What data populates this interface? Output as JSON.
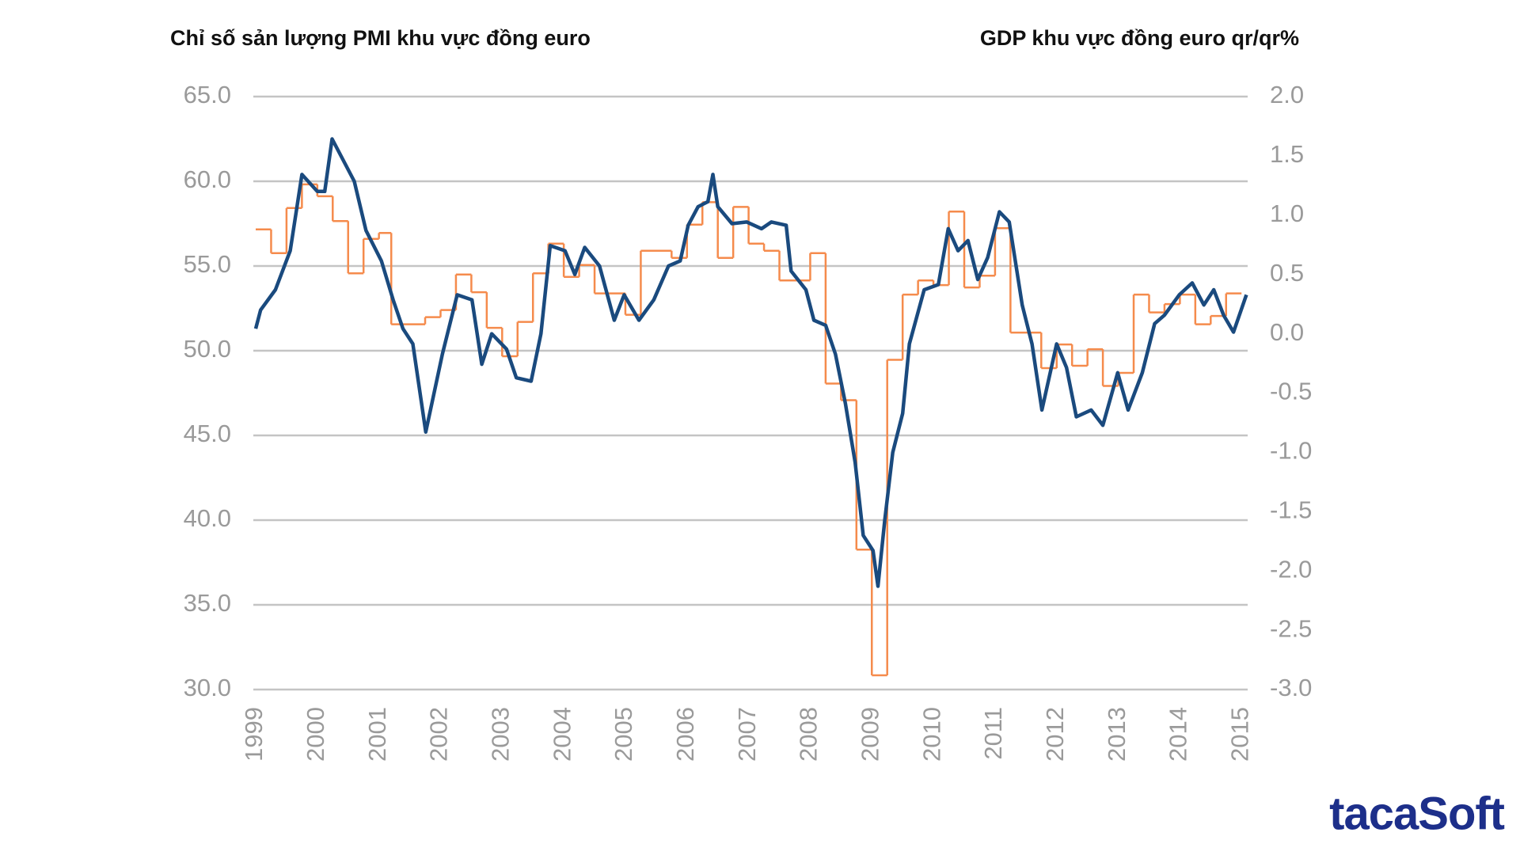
{
  "chart_data": {
    "type": "line",
    "y_label": "Chỉ số sản lượng PMI khu vực đồng euro",
    "y2_label": "GDP khu vực đồng euro qr/qr%",
    "xlim": [
      1999,
      2015.1
    ],
    "xticks": [
      1999,
      2000,
      2001,
      2002,
      2003,
      2004,
      2005,
      2006,
      2007,
      2008,
      2009,
      2010,
      2011,
      2012,
      2013,
      2014,
      2015
    ],
    "ylim": [
      30,
      65
    ],
    "yticks": [
      {
        "value": 30,
        "label": "30.0"
      },
      {
        "value": 35,
        "label": "35.0"
      },
      {
        "value": 40,
        "label": "40.0"
      },
      {
        "value": 45,
        "label": "45.0"
      },
      {
        "value": 50,
        "label": "50.0"
      },
      {
        "value": 55,
        "label": "55.0"
      },
      {
        "value": 60,
        "label": "60.0"
      },
      {
        "value": 65,
        "label": "65.0"
      }
    ],
    "y2lim": [
      -3,
      2
    ],
    "y2ticks": [
      {
        "value": -3,
        "label": "-3.0"
      },
      {
        "value": -2.5,
        "label": "-2.5"
      },
      {
        "value": -2,
        "label": "-2.0"
      },
      {
        "value": -1.5,
        "label": "-1.5"
      },
      {
        "value": -1,
        "label": "-1.0"
      },
      {
        "value": -0.5,
        "label": "-0.5"
      },
      {
        "value": 0,
        "label": "0.0"
      },
      {
        "value": 0.5,
        "label": "0.5"
      },
      {
        "value": 1,
        "label": "1.0"
      },
      {
        "value": 1.5,
        "label": "1.5"
      },
      {
        "value": 2,
        "label": "2.0"
      }
    ],
    "grid": true,
    "series": [
      {
        "color": "#1a4a7e",
        "axis": "y",
        "x": [
          1999.0,
          1999.08,
          1999.32,
          1999.56,
          1999.75,
          2000.0,
          2000.12,
          2000.24,
          2000.6,
          2000.79,
          2001.04,
          2001.23,
          2001.39,
          2001.55,
          2001.76,
          2002.03,
          2002.27,
          2002.51,
          2002.67,
          2002.83,
          2003.07,
          2003.23,
          2003.47,
          2003.63,
          2003.78,
          2004.02,
          2004.18,
          2004.34,
          2004.58,
          2004.82,
          2004.98,
          2005.22,
          2005.46,
          2005.7,
          2005.89,
          2006.02,
          2006.18,
          2006.34,
          2006.42,
          2006.5,
          2006.73,
          2006.97,
          2007.21,
          2007.37,
          2007.61,
          2007.69,
          2007.93,
          2008.06,
          2008.25,
          2008.41,
          2008.57,
          2008.73,
          2008.86,
          2009.02,
          2009.1,
          2009.21,
          2009.34,
          2009.5,
          2009.61,
          2009.85,
          2010.08,
          2010.24,
          2010.4,
          2010.56,
          2010.72,
          2010.88,
          2011.07,
          2011.23,
          2011.44,
          2011.6,
          2011.76,
          2012.0,
          2012.16,
          2012.32,
          2012.56,
          2012.75,
          2012.99,
          2013.16,
          2013.39,
          2013.59,
          2013.75,
          2013.99,
          2014.2,
          2014.39,
          2014.55,
          2014.71,
          2014.87,
          2015.08
        ],
        "values": [
          51.3,
          52.4,
          53.6,
          55.9,
          60.4,
          59.4,
          59.4,
          62.5,
          60.0,
          57.1,
          55.3,
          53.0,
          51.3,
          50.4,
          45.2,
          49.8,
          53.3,
          53.0,
          49.2,
          51.0,
          50.1,
          48.4,
          48.2,
          51.0,
          56.2,
          55.9,
          54.5,
          56.1,
          55.0,
          51.8,
          53.3,
          51.8,
          53.0,
          55.0,
          55.3,
          57.4,
          58.5,
          58.8,
          60.4,
          58.5,
          57.5,
          57.6,
          57.2,
          57.6,
          57.4,
          54.7,
          53.6,
          51.8,
          51.5,
          49.8,
          46.9,
          43.4,
          39.1,
          38.2,
          36.1,
          40.0,
          44.0,
          46.3,
          50.4,
          53.6,
          53.9,
          57.2,
          55.9,
          56.5,
          54.2,
          55.5,
          58.2,
          57.6,
          52.7,
          50.4,
          46.5,
          50.4,
          49.0,
          46.1,
          46.5,
          45.6,
          48.7,
          46.5,
          48.7,
          51.6,
          52.1,
          53.3,
          54.0,
          52.7,
          53.6,
          52.1,
          51.1,
          53.3
        ]
      },
      {
        "color": "#f58b4c",
        "axis": "y2",
        "step": true,
        "x": [
          1999.0,
          1999.25,
          1999.5,
          1999.75,
          2000.0,
          2000.25,
          2000.5,
          2000.75,
          2001.0,
          2001.2,
          2001.75,
          2002.0,
          2002.25,
          2002.5,
          2002.75,
          2003.0,
          2003.25,
          2003.5,
          2003.75,
          2004.0,
          2004.25,
          2004.5,
          2005.0,
          2005.25,
          2005.75,
          2006.0,
          2006.25,
          2006.5,
          2006.75,
          2007.0,
          2007.25,
          2007.5,
          2008.0,
          2008.25,
          2008.5,
          2008.75,
          2009.0,
          2009.25,
          2009.5,
          2009.75,
          2010.0,
          2010.25,
          2010.5,
          2010.75,
          2011.0,
          2011.25,
          2011.75,
          2012.0,
          2012.25,
          2012.5,
          2012.75,
          2013.0,
          2013.25,
          2013.5,
          2013.75,
          2014.0,
          2014.25,
          2014.5,
          2014.75
        ],
        "values": [
          0.88,
          0.68,
          1.06,
          1.26,
          1.16,
          0.95,
          0.51,
          0.8,
          0.85,
          0.08,
          0.14,
          0.2,
          0.5,
          0.35,
          0.05,
          -0.19,
          0.1,
          0.51,
          0.76,
          0.48,
          0.58,
          0.34,
          0.16,
          0.7,
          0.64,
          0.92,
          1.11,
          0.64,
          1.07,
          0.76,
          0.7,
          0.45,
          0.68,
          -0.42,
          -0.56,
          -1.82,
          -2.88,
          -0.22,
          0.33,
          0.45,
          0.41,
          1.03,
          0.39,
          0.49,
          0.89,
          0.01,
          -0.29,
          -0.09,
          -0.27,
          -0.13,
          -0.44,
          -0.33,
          0.33,
          0.18,
          0.25,
          0.33,
          0.08,
          0.15,
          0.34
        ]
      }
    ],
    "logo": "tacaSoft"
  }
}
